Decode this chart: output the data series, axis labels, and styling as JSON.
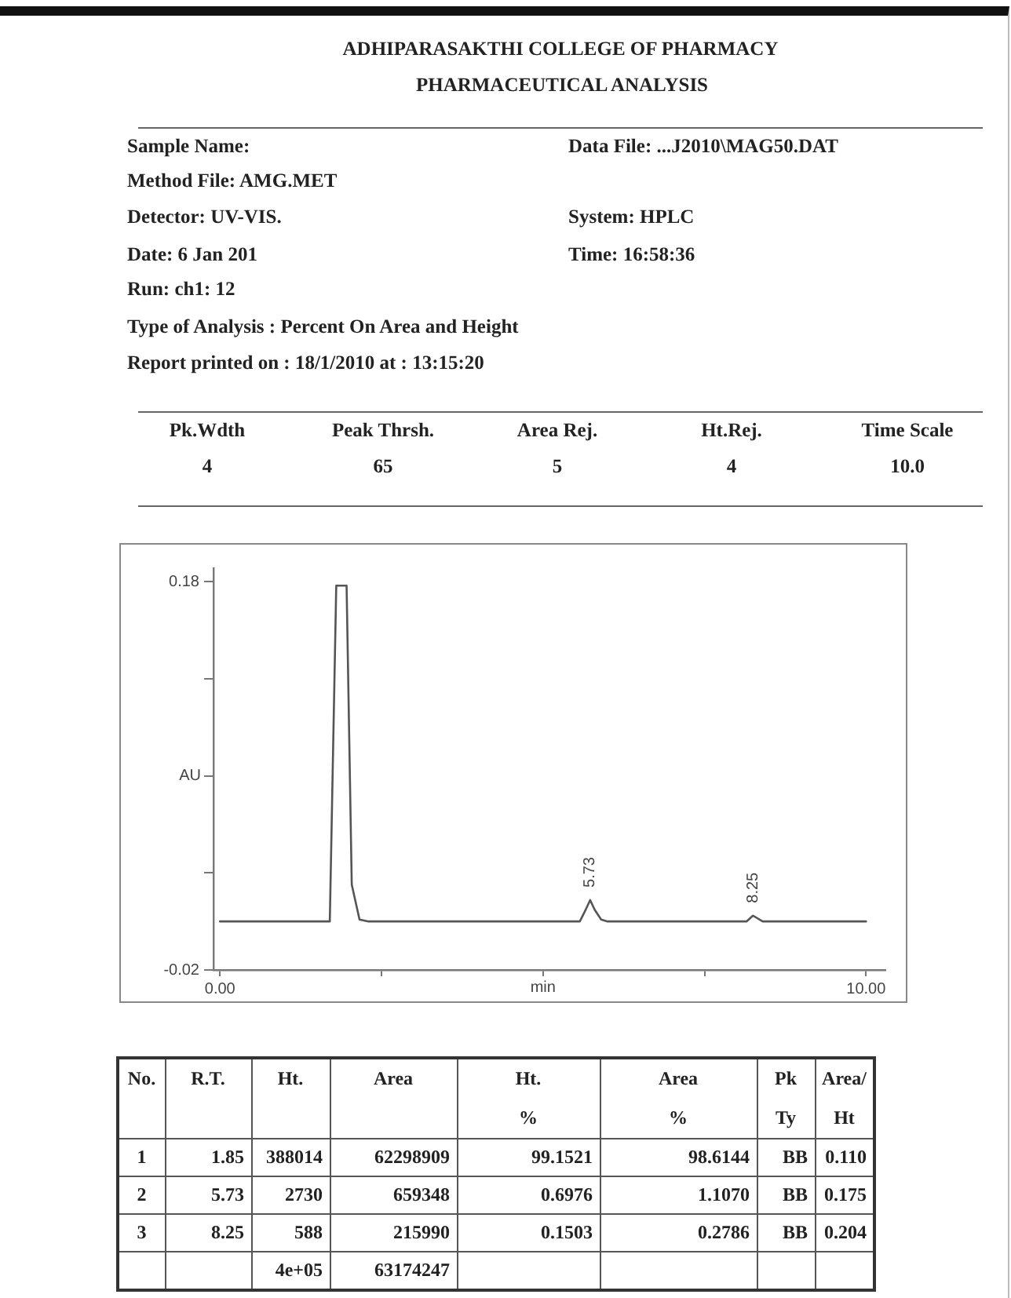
{
  "chart_data": {
    "type": "line",
    "title": "ADHIPARASAKTHI COLLEGE OF PHARMACY",
    "subtitle": "PHARMACEUTICAL ANALYSIS",
    "xlabel": "min",
    "ylabel": "AU",
    "x": [
      0,
      1.7,
      1.8,
      1.96,
      2.04,
      2.16,
      2.3,
      5.57,
      5.66,
      5.73,
      5.8,
      5.9,
      6.0,
      8.15,
      8.25,
      8.4,
      10
    ],
    "series": [
      {
        "color": "#555555",
        "values": [
          0.005,
          0.005,
          0.178,
          0.178,
          0.024,
          0.006,
          0.005,
          0.005,
          0.011,
          0.016,
          0.011,
          0.006,
          0.005,
          0.005,
          0.008,
          0.005,
          0.005
        ]
      }
    ],
    "xlim": [
      -0.1,
      10.3
    ],
    "xticks": [
      {
        "value": 0,
        "label": "0.00"
      },
      {
        "value": 2.5,
        "label": null
      },
      {
        "value": 5,
        "label": null
      },
      {
        "value": 7.5,
        "label": null
      },
      {
        "value": 10,
        "label": "10.00"
      }
    ],
    "ylim": [
      -0.02,
      0.187
    ],
    "yticks": [
      -0.02,
      {
        "value": 0.03,
        "label": null
      },
      {
        "value": 0.08,
        "label": null
      },
      {
        "value": 0.13,
        "label": null
      },
      0.18
    ],
    "annotations": [
      "Sample Name:",
      "Data File: ...J2010\\MAG50.DAT",
      "Method File: AMG.MET",
      "Detector: UV-VIS.",
      "System: HPLC",
      "Date: 6 Jan 201",
      "Time: 16:58:36",
      "Run: ch1: 12",
      "Type of Analysis : Percent On Area and Height",
      "Report printed on : 18/1/2010 at : 13:15:20",
      "Pk.Wdth",
      "Peak Thrsh.",
      "Area Rej.",
      "Ht.Rej.",
      "Time Scale",
      "4",
      "65",
      "5",
      "4",
      "10.0",
      {
        "text": "5.73",
        "x": 5.73,
        "y": 0.016
      },
      {
        "text": "8.25",
        "x": 8.25,
        "y": 0.008
      },
      "No.",
      "R.T.",
      "Ht.",
      "Area",
      "Ht.\n%",
      "Area\n%",
      "Pk\nTy",
      "Area/\nHt",
      "1",
      "1.85",
      "388014",
      "62298909",
      "99.1521",
      "98.6144",
      "BB",
      "0.110",
      "2",
      "5.73",
      "2730",
      "659348",
      "0.6976",
      "1.1070",
      "BB",
      "0.175",
      "3",
      "8.25",
      "588",
      "215990",
      "0.1503",
      "0.2786",
      "BB",
      "0.204",
      "4e+05",
      "63174247"
    ]
  }
}
